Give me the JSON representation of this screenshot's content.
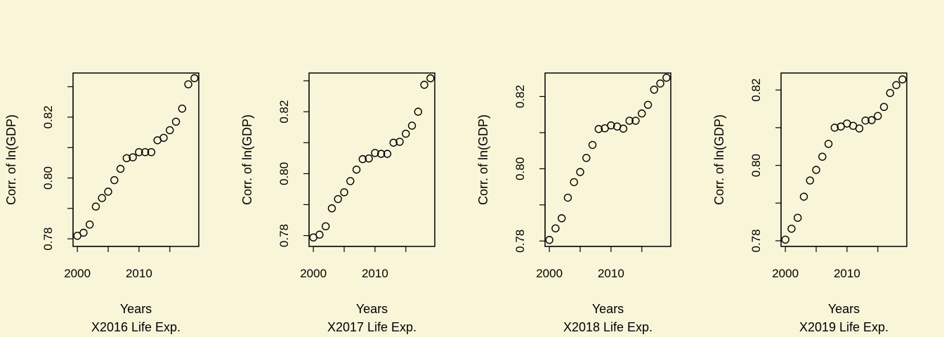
{
  "chart_data": [
    {
      "type": "scatter",
      "title": "",
      "xlabel": "Years",
      "subtitle": "X2016 Life Exp.",
      "ylabel": "Corr. of ln(GDP)",
      "xlim": [
        1999.3,
        2019.7
      ],
      "ylim": [
        0.7775,
        0.8345
      ],
      "xticks": [
        2000,
        2005,
        2010,
        2015
      ],
      "xtick_labels": [
        "2000",
        "",
        "2010",
        ""
      ],
      "yticks": [
        0.78,
        0.79,
        0.8,
        0.81,
        0.82,
        0.83
      ],
      "ytick_labels": [
        "0.78",
        "",
        "0.80",
        "",
        "0.82",
        ""
      ],
      "x": [
        2000,
        2001,
        2002,
        2003,
        2004,
        2005,
        2006,
        2007,
        2008,
        2009,
        2010,
        2011,
        2012,
        2013,
        2014,
        2015,
        2016,
        2017,
        2018,
        2019
      ],
      "y": [
        0.781,
        0.782,
        0.7847,
        0.7906,
        0.7934,
        0.7955,
        0.7993,
        0.803,
        0.8065,
        0.8068,
        0.8085,
        0.8085,
        0.8085,
        0.8124,
        0.8132,
        0.8157,
        0.8185,
        0.8228,
        0.8308,
        0.8328
      ]
    },
    {
      "type": "scatter",
      "title": "",
      "xlabel": "Years",
      "subtitle": "X2017 Life Exp.",
      "ylabel": "Corr. of ln(GDP)",
      "xlim": [
        1999.3,
        2019.7
      ],
      "ylim": [
        0.7765,
        0.8325
      ],
      "xticks": [
        2000,
        2005,
        2010,
        2015
      ],
      "xtick_labels": [
        "2000",
        "",
        "2010",
        ""
      ],
      "yticks": [
        0.78,
        0.79,
        0.8,
        0.81,
        0.82,
        0.83
      ],
      "ytick_labels": [
        "0.78",
        "",
        "0.80",
        "",
        "0.82",
        ""
      ],
      "x": [
        2000,
        2001,
        2002,
        2003,
        2004,
        2005,
        2006,
        2007,
        2008,
        2009,
        2010,
        2011,
        2012,
        2013,
        2014,
        2015,
        2016,
        2017,
        2018,
        2019
      ],
      "y": [
        0.7794,
        0.7803,
        0.783,
        0.7888,
        0.7918,
        0.794,
        0.7976,
        0.8013,
        0.8047,
        0.8049,
        0.8067,
        0.8064,
        0.8064,
        0.81,
        0.8103,
        0.8129,
        0.8155,
        0.82,
        0.8287,
        0.8308
      ]
    },
    {
      "type": "scatter",
      "title": "",
      "xlabel": "Years",
      "subtitle": "X2018 Life Exp.",
      "ylabel": "Corr. of ln(GDP)",
      "xlim": [
        1999.3,
        2019.7
      ],
      "ylim": [
        0.7785,
        0.8265
      ],
      "xticks": [
        2000,
        2005,
        2010,
        2015
      ],
      "xtick_labels": [
        "2000",
        "",
        "2010",
        ""
      ],
      "yticks": [
        0.78,
        0.79,
        0.8,
        0.81,
        0.82
      ],
      "ytick_labels": [
        "0.78",
        "",
        "0.80",
        "",
        "0.82"
      ],
      "x": [
        2000,
        2001,
        2002,
        2003,
        2004,
        2005,
        2006,
        2007,
        2008,
        2009,
        2010,
        2011,
        2012,
        2013,
        2014,
        2015,
        2016,
        2017,
        2018,
        2019
      ],
      "y": [
        0.7803,
        0.7835,
        0.7863,
        0.792,
        0.7963,
        0.7991,
        0.803,
        0.8066,
        0.811,
        0.8112,
        0.812,
        0.8117,
        0.8111,
        0.8133,
        0.8133,
        0.8153,
        0.8177,
        0.8219,
        0.8236,
        0.8252
      ]
    },
    {
      "type": "scatter",
      "title": "",
      "xlabel": "Years",
      "subtitle": "X2019 Life Exp.",
      "ylabel": "Corr. of ln(GDP)",
      "xlim": [
        1999.3,
        2019.7
      ],
      "ylim": [
        0.7785,
        0.8245
      ],
      "xticks": [
        2000,
        2005,
        2010,
        2015
      ],
      "xtick_labels": [
        "2000",
        "",
        "2010",
        ""
      ],
      "yticks": [
        0.78,
        0.79,
        0.8,
        0.81,
        0.82
      ],
      "ytick_labels": [
        "0.78",
        "",
        "0.80",
        "",
        "0.82"
      ],
      "x": [
        2000,
        2001,
        2002,
        2003,
        2004,
        2005,
        2006,
        2007,
        2008,
        2009,
        2010,
        2011,
        2012,
        2013,
        2014,
        2015,
        2016,
        2017,
        2018,
        2019
      ],
      "y": [
        0.7803,
        0.7832,
        0.7861,
        0.7917,
        0.796,
        0.7988,
        0.8023,
        0.8057,
        0.81,
        0.8103,
        0.8111,
        0.8105,
        0.8098,
        0.8119,
        0.812,
        0.8131,
        0.8155,
        0.8192,
        0.8213,
        0.8228
      ]
    }
  ]
}
